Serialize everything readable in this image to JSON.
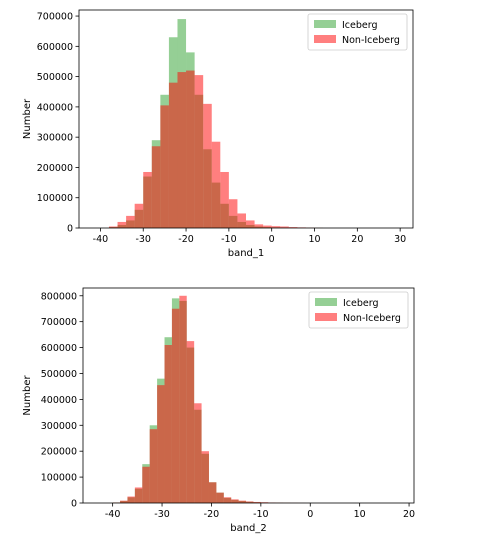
{
  "chart_data": [
    {
      "type": "bar",
      "xlabel": "band_1",
      "ylabel": "Number",
      "xlim": [
        -45,
        33
      ],
      "ylim": [
        0,
        720000
      ],
      "xticks": [
        "-40",
        "-30",
        "-20",
        "-10",
        "0",
        "10",
        "20",
        "30"
      ],
      "yticks": [
        "0",
        "100000",
        "200000",
        "300000",
        "400000",
        "500000",
        "600000",
        "700000"
      ],
      "legend": {
        "placement": "top-right",
        "entries": [
          "Iceberg",
          "Non-Iceberg"
        ]
      },
      "bin_edges": [
        -38,
        -36,
        -34,
        -32,
        -30,
        -28,
        -26,
        -24,
        -22,
        -20,
        -18,
        -16,
        -14,
        -12,
        -10,
        -8,
        -6,
        -4,
        -2,
        0,
        2,
        4,
        6,
        8,
        10,
        12
      ],
      "series": [
        {
          "name": "Iceberg",
          "color": "#2ca02c",
          "values": [
            3000,
            10000,
            25000,
            60000,
            170000,
            290000,
            440000,
            630000,
            690000,
            580000,
            440000,
            260000,
            150000,
            80000,
            40000,
            20000,
            10000,
            5000,
            3000,
            2000,
            1000,
            500,
            300,
            200,
            100
          ]
        },
        {
          "name": "Non-Iceberg",
          "color": "#ff0000",
          "values": [
            5000,
            20000,
            40000,
            80000,
            185000,
            270000,
            405000,
            480000,
            515000,
            520000,
            505000,
            410000,
            285000,
            185000,
            95000,
            48000,
            25000,
            12000,
            8000,
            6000,
            5000,
            3000,
            2000,
            1000,
            500
          ]
        }
      ]
    },
    {
      "type": "bar",
      "xlabel": "band_2",
      "ylabel": "Number",
      "xlim": [
        -46,
        21
      ],
      "ylim": [
        0,
        830000
      ],
      "xticks": [
        "-40",
        "-30",
        "-20",
        "-10",
        "0",
        "10",
        "20"
      ],
      "yticks": [
        "0",
        "100000",
        "200000",
        "300000",
        "400000",
        "500000",
        "600000",
        "700000",
        "800000"
      ],
      "legend": {
        "placement": "top-right",
        "entries": [
          "Iceberg",
          "Non-Iceberg"
        ]
      },
      "bin_edges": [
        -40,
        -38.5,
        -37,
        -35.5,
        -34,
        -32.5,
        -31,
        -29.5,
        -28,
        -26.5,
        -25,
        -23.5,
        -22,
        -20.5,
        -19,
        -17.5,
        -16,
        -14.5,
        -13,
        -11.5,
        -10,
        -8.5,
        -7,
        -5.5,
        -4,
        -2.5,
        -1,
        0.5
      ],
      "series": [
        {
          "name": "Iceberg",
          "color": "#2ca02c",
          "values": [
            2000,
            8000,
            22000,
            55000,
            150000,
            300000,
            480000,
            640000,
            790000,
            780000,
            600000,
            360000,
            190000,
            80000,
            40000,
            20000,
            12000,
            8000,
            5000,
            3000,
            2000,
            1000,
            800,
            500,
            300,
            200,
            100
          ]
        },
        {
          "name": "Non-Iceberg",
          "color": "#ff0000",
          "values": [
            2000,
            9000,
            25000,
            60000,
            140000,
            285000,
            455000,
            610000,
            750000,
            800000,
            625000,
            385000,
            200000,
            80000,
            40000,
            22000,
            14000,
            9000,
            6000,
            4000,
            3000,
            2000,
            1500,
            1000,
            600,
            300,
            200
          ]
        }
      ]
    }
  ]
}
